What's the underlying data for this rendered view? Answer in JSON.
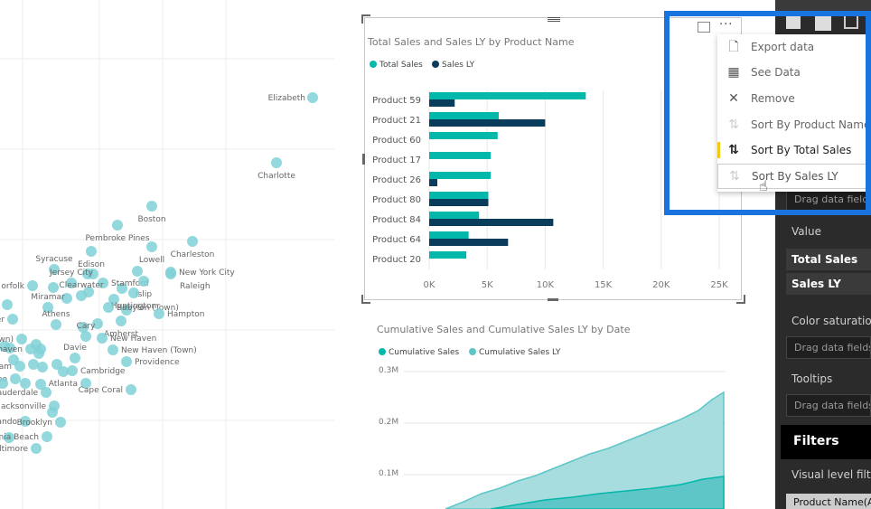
{
  "scatter": {
    "points": [
      {
        "label": "Elizabeth"
      },
      {
        "label": "Charlotte"
      },
      {
        "label": "Boston"
      },
      {
        "label": "Pembroke Pines"
      },
      {
        "label": "Charleston"
      },
      {
        "label": "Syracuse"
      },
      {
        "label": "Edison"
      },
      {
        "label": "Lowell"
      },
      {
        "label": "New York City"
      },
      {
        "label": "Raleigh"
      },
      {
        "label": "Jersey City"
      },
      {
        "label": "Stamford"
      },
      {
        "label": "Islip"
      },
      {
        "label": "orfolk"
      },
      {
        "label": "Clearwater"
      },
      {
        "label": "Huntington"
      },
      {
        "label": "sboro"
      },
      {
        "label": "Miramar"
      },
      {
        "label": "Babylon (Town)"
      },
      {
        "label": "Hampton"
      },
      {
        "label": "hester"
      },
      {
        "label": "Athens"
      },
      {
        "label": "Amherst"
      },
      {
        "label": "sport (Town)"
      },
      {
        "label": "Cary"
      },
      {
        "label": "New Haven"
      },
      {
        "label": "Brookhaven"
      },
      {
        "label": "New Haven (Town)"
      },
      {
        "label": "Davie"
      },
      {
        "label": "Providence"
      },
      {
        "label": "Durham"
      },
      {
        "label": "Cambridge"
      },
      {
        "label": "Ramapo"
      },
      {
        "label": "Atlanta"
      },
      {
        "label": "Fort Lauderdale"
      },
      {
        "label": "Cape Coral"
      },
      {
        "label": "acksonville"
      },
      {
        "label": "rlando"
      },
      {
        "label": "Brooklyn"
      },
      {
        "label": "usta"
      },
      {
        "label": "Virginia Beach"
      },
      {
        "label": "Baltimore"
      },
      {
        "label": "o"
      }
    ]
  },
  "bar_visual": {
    "chart_data": {
      "type": "bar",
      "orientation": "horizontal",
      "title": "Total Sales and Sales LY by Product Name",
      "categories": [
        "Product 59",
        "Product 21",
        "Product 60",
        "Product 17",
        "Product 26",
        "Product 80",
        "Product 84",
        "Product 64",
        "Product 20"
      ],
      "series": [
        {
          "name": "Total Sales",
          "color": "#01b8aa",
          "values": [
            13500,
            6000,
            5900,
            5300,
            5300,
            5100,
            4300,
            3400,
            3200
          ]
        },
        {
          "name": "Sales LY",
          "color": "#0a3d5c",
          "values": [
            2200,
            10000,
            0,
            0,
            700,
            5100,
            10700,
            6800,
            0
          ]
        }
      ],
      "x_ticks": [
        "0K",
        "5K",
        "10K",
        "15K",
        "20K",
        "25K"
      ],
      "xlim": [
        0,
        25000
      ],
      "grid": true,
      "legend": "top-left"
    }
  },
  "area_visual": {
    "chart_data": {
      "type": "area",
      "title": "Cumulative Sales and Cumulative Sales LY by Date",
      "series": [
        {
          "name": "Cumulative Sales",
          "color": "#01b8aa"
        },
        {
          "name": "Cumulative Sales LY",
          "color": "#5ec6c6"
        }
      ],
      "y_ticks": [
        "0.3M",
        "0.2M",
        "0.1M"
      ],
      "legend": "top-left"
    }
  },
  "context_menu": {
    "items": [
      {
        "label": "Export data",
        "icon": "export-icon"
      },
      {
        "label": "See Data",
        "icon": "table-icon"
      },
      {
        "label": "Remove",
        "icon": "close-icon"
      },
      {
        "label": "Sort By Product Name",
        "icon": "sort-icon"
      },
      {
        "label": "Sort By Total Sales",
        "icon": "sort-icon",
        "active": true
      },
      {
        "label": "Sort By Sales LY",
        "icon": "sort-icon",
        "hover": true
      }
    ]
  },
  "viz_pane": {
    "drag_placeholder": "Drag data fields",
    "value_heading": "Value",
    "value_fields": [
      "Total Sales",
      "Sales LY"
    ],
    "color_saturation_heading": "Color saturation",
    "tooltips_heading": "Tooltips",
    "filters_heading": "Filters",
    "visual_level_filters": "Visual level filters",
    "filter_field": "Product Name(All)"
  },
  "colors": {
    "accent": "#01b8aa",
    "dark_series": "#0a3d5c",
    "highlight": "#1a74e0",
    "pane_bg": "#2b2b2b",
    "active_marker": "#f2c811"
  }
}
